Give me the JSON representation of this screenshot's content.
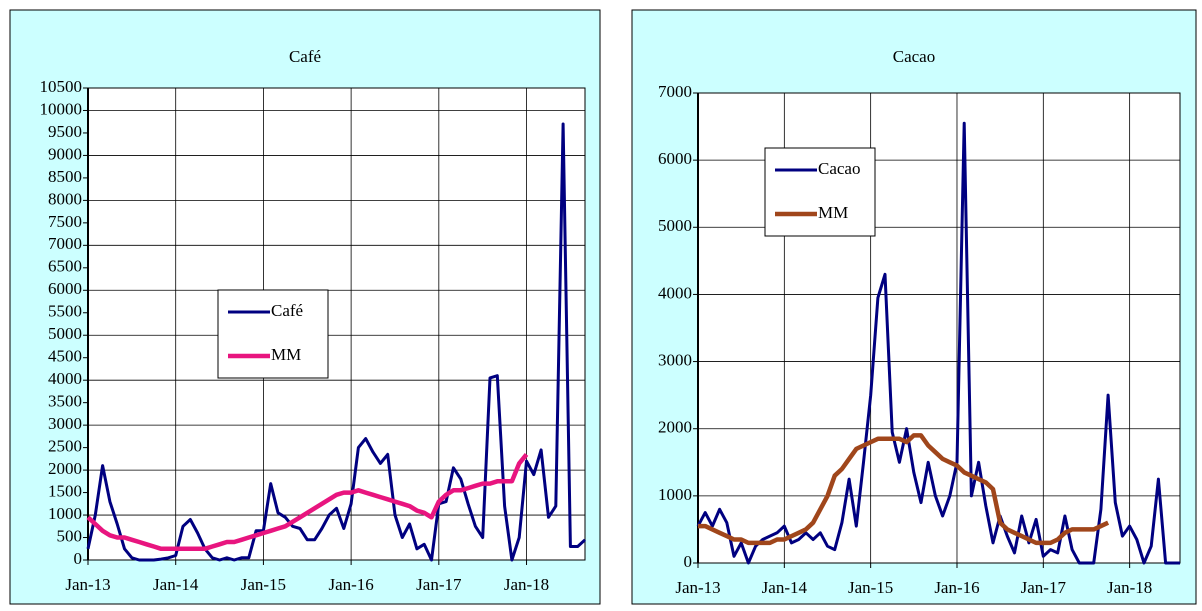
{
  "chart_data": [
    {
      "type": "line",
      "title": "Café",
      "categories": [
        "Jan-13",
        null,
        null,
        null,
        null,
        null,
        null,
        null,
        null,
        null,
        null,
        null,
        "Jan-14",
        null,
        null,
        null,
        null,
        null,
        null,
        null,
        null,
        null,
        null,
        null,
        "Jan-15",
        null,
        null,
        null,
        null,
        null,
        null,
        null,
        null,
        null,
        null,
        null,
        "Jan-16",
        null,
        null,
        null,
        null,
        null,
        null,
        null,
        null,
        null,
        null,
        null,
        "Jan-17",
        null,
        null,
        null,
        null,
        null,
        null,
        null,
        null,
        null,
        null,
        null,
        "Jan-18",
        null,
        null,
        null,
        null,
        null,
        null,
        null,
        null
      ],
      "series": [
        {
          "name": "Café",
          "color": "#000080",
          "values": [
            250,
            1000,
            2100,
            1300,
            800,
            250,
            50,
            0,
            0,
            0,
            20,
            50,
            100,
            750,
            900,
            600,
            250,
            50,
            0,
            50,
            0,
            50,
            50,
            650,
            650,
            1700,
            1050,
            950,
            750,
            700,
            450,
            450,
            700,
            1000,
            1150,
            700,
            1250,
            2500,
            2700,
            2400,
            2150,
            2350,
            1000,
            500,
            800,
            250,
            350,
            0,
            1250,
            1300,
            2050,
            1800,
            1250,
            750,
            500,
            4050,
            4100,
            1200,
            0,
            500,
            2200,
            1900,
            2450,
            950,
            1200,
            9700,
            300,
            300,
            450
          ]
        },
        {
          "name": "MM",
          "color": "#e8157f",
          "values": [
            950,
            800,
            650,
            550,
            500,
            500,
            450,
            400,
            350,
            300,
            250,
            250,
            250,
            250,
            250,
            250,
            250,
            300,
            350,
            400,
            400,
            450,
            500,
            550,
            600,
            650,
            700,
            750,
            850,
            950,
            1050,
            1150,
            1250,
            1350,
            1450,
            1500,
            1500,
            1550,
            1500,
            1450,
            1400,
            1350,
            1300,
            1250,
            1200,
            1100,
            1050,
            950,
            1300,
            1450,
            1550,
            1550,
            1600,
            1650,
            1700,
            1700,
            1750,
            1750,
            1750,
            2150,
            2350,
            null,
            null,
            null,
            null,
            null,
            null,
            null,
            null
          ]
        }
      ],
      "ylim": [
        0,
        10500
      ],
      "yticks": [
        0,
        500,
        1000,
        1500,
        2000,
        2500,
        3000,
        3500,
        4000,
        4500,
        5000,
        5500,
        6000,
        6500,
        7000,
        7500,
        8000,
        8500,
        9000,
        9500,
        10000,
        10500
      ],
      "grid": true,
      "legend": "center"
    },
    {
      "type": "line",
      "title": "Cacao",
      "categories": [
        "Jan-13",
        null,
        null,
        null,
        null,
        null,
        null,
        null,
        null,
        null,
        null,
        null,
        "Jan-14",
        null,
        null,
        null,
        null,
        null,
        null,
        null,
        null,
        null,
        null,
        null,
        "Jan-15",
        null,
        null,
        null,
        null,
        null,
        null,
        null,
        null,
        null,
        null,
        null,
        "Jan-16",
        null,
        null,
        null,
        null,
        null,
        null,
        null,
        null,
        null,
        null,
        null,
        "Jan-17",
        null,
        null,
        null,
        null,
        null,
        null,
        null,
        null,
        null,
        null,
        null,
        "Jan-18",
        null,
        null,
        null,
        null,
        null,
        null,
        null
      ],
      "series": [
        {
          "name": "Cacao",
          "color": "#000080",
          "values": [
            550,
            750,
            550,
            800,
            600,
            100,
            300,
            0,
            250,
            350,
            400,
            450,
            550,
            300,
            350,
            450,
            350,
            450,
            250,
            200,
            600,
            1250,
            550,
            1500,
            2500,
            3950,
            4300,
            1950,
            1500,
            2000,
            1350,
            900,
            1500,
            1000,
            700,
            1000,
            1500,
            6550,
            1000,
            1500,
            850,
            300,
            700,
            400,
            150,
            700,
            300,
            650,
            100,
            200,
            150,
            700,
            200,
            0,
            0,
            0,
            800,
            2500,
            900,
            400,
            550,
            350,
            0,
            250,
            1250,
            0,
            0,
            0
          ]
        },
        {
          "name": "MM",
          "color": "#a0461b",
          "values": [
            550,
            550,
            500,
            450,
            400,
            350,
            350,
            300,
            300,
            300,
            300,
            350,
            350,
            400,
            450,
            500,
            600,
            800,
            1000,
            1300,
            1400,
            1550,
            1700,
            1750,
            1800,
            1850,
            1850,
            1850,
            1850,
            1800,
            1900,
            1900,
            1750,
            1650,
            1550,
            1500,
            1450,
            1350,
            1300,
            1250,
            1200,
            1100,
            600,
            500,
            450,
            400,
            350,
            300,
            300,
            300,
            350,
            450,
            500,
            500,
            500,
            500,
            550,
            600,
            null,
            null,
            null,
            null,
            null,
            null,
            null,
            null,
            null,
            null
          ]
        }
      ],
      "ylim": [
        0,
        7000
      ],
      "yticks": [
        0,
        1000,
        2000,
        3000,
        4000,
        5000,
        6000,
        7000
      ],
      "grid": true,
      "legend": "upper-left"
    }
  ]
}
